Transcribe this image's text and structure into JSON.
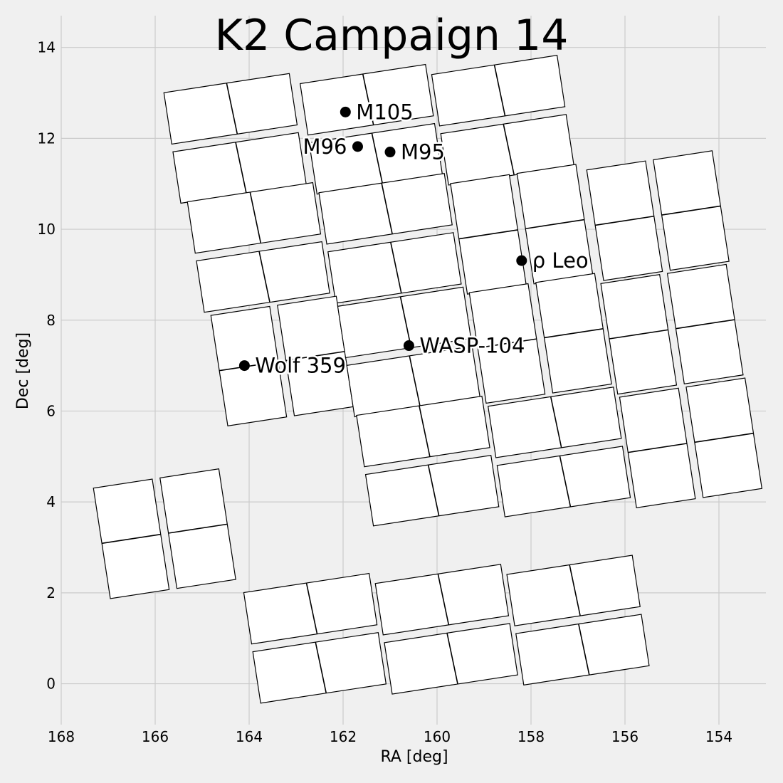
{
  "chart_data": {
    "type": "scatter",
    "title": "K2 Campaign 14",
    "xlabel": "RA [deg]",
    "ylabel": "Dec [deg]",
    "xlim": [
      168,
      153
    ],
    "ylim": [
      -0.9,
      14.7
    ],
    "x_ticks": [
      168,
      166,
      164,
      162,
      160,
      158,
      156,
      154
    ],
    "y_ticks": [
      0,
      2,
      4,
      6,
      8,
      10,
      12,
      14
    ],
    "grid": true,
    "module_fill": "#ffffff",
    "module_edge": "#000000",
    "background": "#f0f0f0",
    "grid_color": "#cbcbcb",
    "modules": [
      {
        "center": [
          164.3,
          12.0
        ],
        "rotation_deg": -8.7,
        "divider": "vertical"
      },
      {
        "center": [
          161.4,
          12.2
        ],
        "rotation_deg": -8.7,
        "divider": "vertical"
      },
      {
        "center": [
          158.6,
          12.4
        ],
        "rotation_deg": -8.7,
        "divider": "vertical"
      },
      {
        "center": [
          163.8,
          9.6
        ],
        "rotation_deg": -8.7,
        "divider": "vertical"
      },
      {
        "center": [
          161.0,
          9.8
        ],
        "rotation_deg": -8.7,
        "divider": "vertical"
      },
      {
        "center": [
          158.2,
          10.0
        ],
        "rotation_deg": -8.7,
        "divider": "horizontal"
      },
      {
        "center": [
          155.3,
          10.3
        ],
        "rotation_deg": -8.7,
        "divider": "horizontal"
      },
      {
        "center": [
          163.3,
          7.1
        ],
        "rotation_deg": -8.7,
        "divider": "horizontal"
      },
      {
        "center": [
          160.6,
          7.3
        ],
        "rotation_deg": -8.7,
        "divider": "vertical"
      },
      {
        "center": [
          157.8,
          7.6
        ],
        "rotation_deg": -8.7,
        "divider": "horizontal"
      },
      {
        "center": [
          155.0,
          7.8
        ],
        "rotation_deg": -8.7,
        "divider": "horizontal"
      },
      {
        "center": [
          160.2,
          4.9
        ],
        "rotation_deg": -8.7,
        "divider": "vertical"
      },
      {
        "center": [
          157.4,
          5.1
        ],
        "rotation_deg": -8.7,
        "divider": "vertical"
      },
      {
        "center": [
          154.6,
          5.3
        ],
        "rotation_deg": -8.7,
        "divider": "horizontal"
      },
      {
        "center": [
          165.8,
          3.3
        ],
        "rotation_deg": -8.7,
        "divider": "horizontal"
      },
      {
        "center": [
          162.6,
          1.0
        ],
        "rotation_deg": -8.7,
        "divider": "vertical"
      },
      {
        "center": [
          159.8,
          1.2
        ],
        "rotation_deg": -8.7,
        "divider": "vertical"
      },
      {
        "center": [
          157.0,
          1.4
        ],
        "rotation_deg": -8.7,
        "divider": "vertical"
      }
    ],
    "module_half_size": {
      "dx": 1.35,
      "dy": 1.23
    },
    "targets": [
      {
        "name": "M105",
        "ra": 161.95,
        "dec": 12.58,
        "label_side": "right"
      },
      {
        "name": "M96",
        "ra": 161.69,
        "dec": 11.82,
        "label_side": "left"
      },
      {
        "name": "M95",
        "ra": 161.0,
        "dec": 11.7,
        "label_side": "right"
      },
      {
        "name": "ρ Leo",
        "ra": 158.2,
        "dec": 9.31,
        "label_side": "right"
      },
      {
        "name": "WASP-104",
        "ra": 160.6,
        "dec": 7.44,
        "label_side": "right"
      },
      {
        "name": "Wolf 359",
        "ra": 164.1,
        "dec": 7.0,
        "label_side": "right"
      }
    ]
  }
}
